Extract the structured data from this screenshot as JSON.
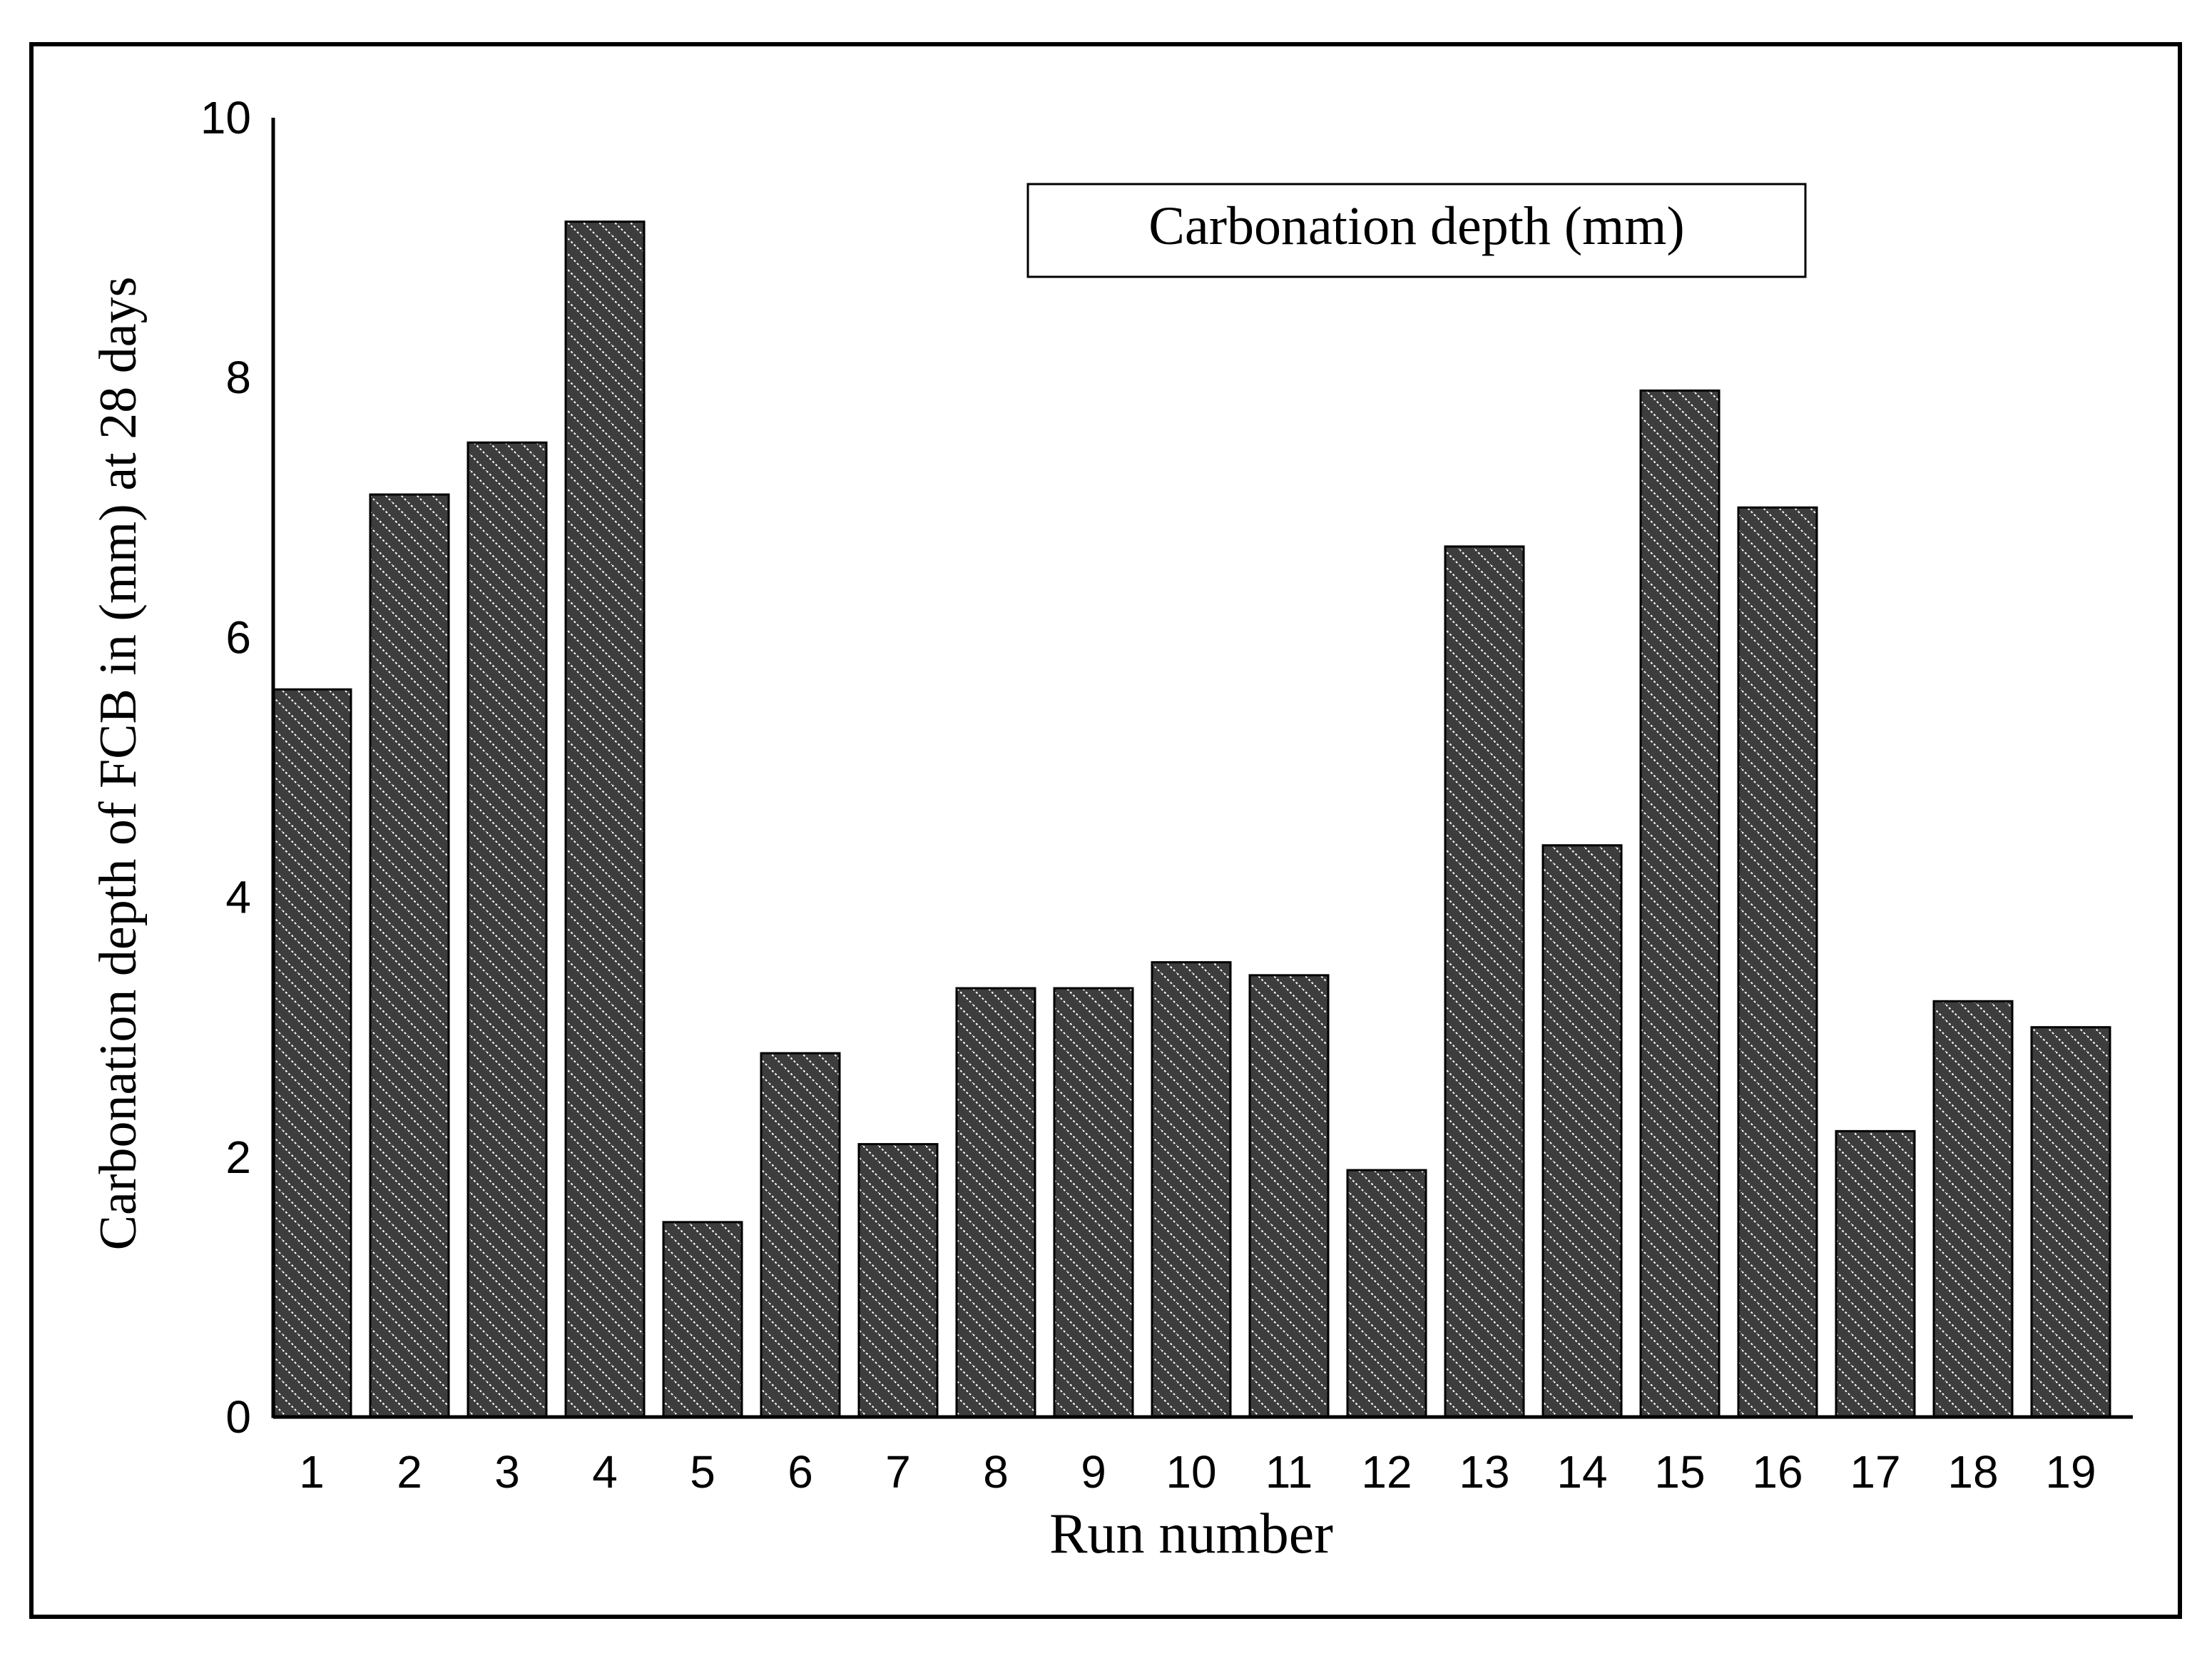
{
  "chart_data": {
    "type": "bar",
    "title": "",
    "legend": {
      "label": "Carbonation depth (mm)",
      "placement": "top-right"
    },
    "xlabel": "Run number",
    "ylabel": "Carbonation depth of FCB in (mm)  at 28 days",
    "categories": [
      "1",
      "2",
      "3",
      "4",
      "5",
      "6",
      "7",
      "8",
      "9",
      "10",
      "11",
      "12",
      "13",
      "14",
      "15",
      "16",
      "17",
      "18",
      "19"
    ],
    "values": [
      5.6,
      7.1,
      7.5,
      9.2,
      1.5,
      2.8,
      2.1,
      3.3,
      3.3,
      3.5,
      3.4,
      1.9,
      6.7,
      4.4,
      7.9,
      7.0,
      2.2,
      3.2,
      3.0
    ],
    "ylim": [
      0,
      10
    ],
    "yticks": [
      0,
      2,
      4,
      6,
      8,
      10
    ],
    "grid": false,
    "colors": {
      "bar_fill": "#3d3d3d",
      "hatch": "#ffffff",
      "border": "#000000"
    }
  }
}
